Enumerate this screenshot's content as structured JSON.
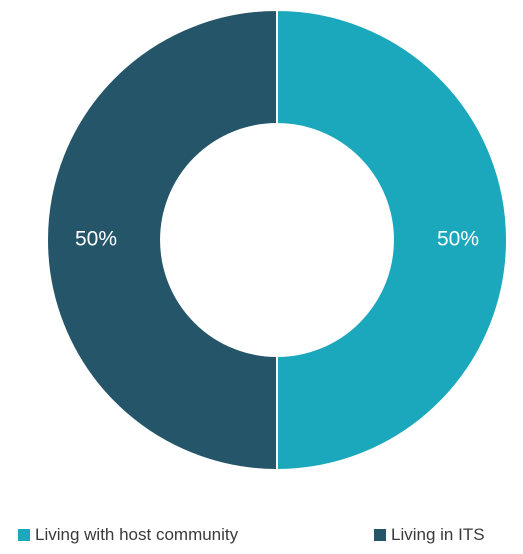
{
  "chart_data": {
    "type": "pie",
    "variant": "donut",
    "slices": [
      {
        "name": "Living with host community",
        "value": 50,
        "label": "50%",
        "color": "#1ca8bc"
      },
      {
        "name": "Living in ITS",
        "value": 50,
        "label": "50%",
        "color": "#245569"
      }
    ],
    "legend_position": "bottom"
  }
}
